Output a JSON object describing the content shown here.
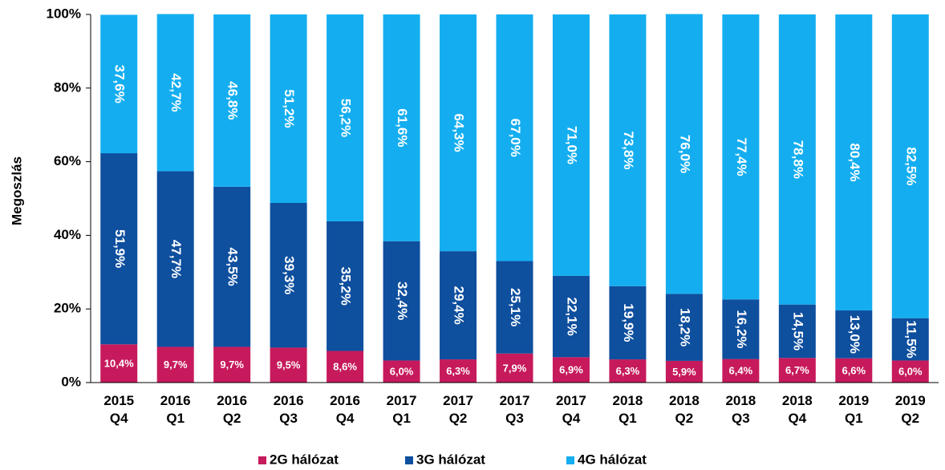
{
  "chart_data": {
    "type": "stacked_bar",
    "y_label": "Megoszlás",
    "categories": [
      [
        "2015",
        "Q4"
      ],
      [
        "2016",
        "Q1"
      ],
      [
        "2016",
        "Q2"
      ],
      [
        "2016",
        "Q3"
      ],
      [
        "2016",
        "Q4"
      ],
      [
        "2017",
        "Q1"
      ],
      [
        "2017",
        "Q2"
      ],
      [
        "2017",
        "Q3"
      ],
      [
        "2017",
        "Q4"
      ],
      [
        "2018",
        "Q1"
      ],
      [
        "2018",
        "Q2"
      ],
      [
        "2018",
        "Q3"
      ],
      [
        "2018",
        "Q4"
      ],
      [
        "2019",
        "Q1"
      ],
      [
        "2019",
        "Q2"
      ]
    ],
    "series": [
      {
        "name": "2G hálózat",
        "color": "#c61a5c",
        "values": [
          10.4,
          9.7,
          9.7,
          9.5,
          8.6,
          6.0,
          6.3,
          7.9,
          6.9,
          6.3,
          5.9,
          6.4,
          6.7,
          6.6,
          6.0
        ],
        "value_labels": [
          "10,4%",
          "9,7%",
          "9,7%",
          "9,5%",
          "8,6%",
          "6,0%",
          "6,3%",
          "7,9%",
          "6,9%",
          "6,3%",
          "5,9%",
          "6,4%",
          "6,7%",
          "6,6%",
          "6,0%"
        ]
      },
      {
        "name": "3G hálózat",
        "color": "#0e4f9e",
        "values": [
          51.9,
          47.7,
          43.5,
          39.3,
          35.2,
          32.4,
          29.4,
          25.1,
          22.1,
          19.9,
          18.2,
          16.2,
          14.5,
          13.0,
          11.5
        ],
        "value_labels": [
          "51,9%",
          "47,7%",
          "43,5%",
          "39,3%",
          "35,2%",
          "32,4%",
          "29,4%",
          "25,1%",
          "22,1%",
          "19,9%",
          "18,2%",
          "16,2%",
          "14,5%",
          "13,0%",
          "11,5%"
        ]
      },
      {
        "name": "4G hálózat",
        "color": "#14aef0",
        "values": [
          37.6,
          42.7,
          46.8,
          51.2,
          56.2,
          61.6,
          64.3,
          67.0,
          71.0,
          73.8,
          76.0,
          77.4,
          78.8,
          80.4,
          82.5
        ],
        "value_labels": [
          "37,6%",
          "42,7%",
          "46,8%",
          "51,2%",
          "56,2%",
          "61,6%",
          "64,3%",
          "67,0%",
          "71,0%",
          "73,8%",
          "76,0%",
          "77,4%",
          "78,8%",
          "80,4%",
          "82,5%"
        ]
      }
    ],
    "ylim": [
      0,
      100
    ],
    "yticks": [
      {
        "value": 0,
        "label": "0%"
      },
      {
        "value": 20,
        "label": "20%"
      },
      {
        "value": 40,
        "label": "40%"
      },
      {
        "value": 60,
        "label": "60%"
      },
      {
        "value": 80,
        "label": "80%"
      },
      {
        "value": 100,
        "label": "100%"
      }
    ],
    "legend": "bottom"
  }
}
